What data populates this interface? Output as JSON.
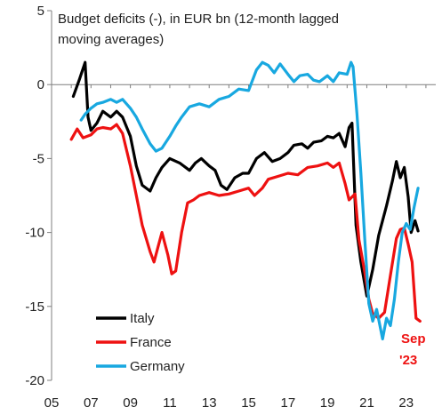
{
  "chart_data": {
    "type": "line",
    "title_lines": [
      "Budget deficits (-), in EUR bn (12-month lagged",
      "moving averages)"
    ],
    "xlabel": "",
    "ylabel": "",
    "xlim": [
      2005,
      2024.5
    ],
    "ylim": [
      -20,
      5
    ],
    "x_ticks": [
      2005,
      2007,
      2009,
      2011,
      2013,
      2015,
      2017,
      2019,
      2021,
      2023
    ],
    "x_tick_labels": [
      "05",
      "07",
      "09",
      "11",
      "13",
      "15",
      "17",
      "19",
      "21",
      "23"
    ],
    "y_ticks": [
      5,
      0,
      -5,
      -10,
      -15,
      -20
    ],
    "y_tick_labels": [
      "5",
      "0",
      "-5",
      "-10",
      "-15",
      "-20"
    ],
    "grid": false,
    "legend_position": "bottom-left",
    "annotation": "Sep '23",
    "annotation_lines": [
      "Sep",
      "'23"
    ],
    "annotation_color": "#ee1111",
    "series": [
      {
        "name": "Italy",
        "color": "#000000",
        "points": [
          [
            2006.1,
            -0.8
          ],
          [
            2006.4,
            0.3
          ],
          [
            2006.7,
            1.5
          ],
          [
            2006.85,
            -2.2
          ],
          [
            2007.0,
            -3.1
          ],
          [
            2007.3,
            -2.6
          ],
          [
            2007.6,
            -1.8
          ],
          [
            2008.0,
            -2.2
          ],
          [
            2008.3,
            -1.8
          ],
          [
            2008.6,
            -2.2
          ],
          [
            2009.0,
            -3.5
          ],
          [
            2009.3,
            -5.5
          ],
          [
            2009.6,
            -6.8
          ],
          [
            2010.0,
            -7.2
          ],
          [
            2010.3,
            -6.3
          ],
          [
            2010.6,
            -5.6
          ],
          [
            2011.0,
            -5.0
          ],
          [
            2011.5,
            -5.3
          ],
          [
            2012.0,
            -5.8
          ],
          [
            2012.3,
            -5.3
          ],
          [
            2012.6,
            -5.0
          ],
          [
            2013.0,
            -5.5
          ],
          [
            2013.3,
            -5.8
          ],
          [
            2013.6,
            -6.8
          ],
          [
            2013.9,
            -7.1
          ],
          [
            2014.3,
            -6.3
          ],
          [
            2014.7,
            -6.0
          ],
          [
            2015.0,
            -6.0
          ],
          [
            2015.4,
            -5.0
          ],
          [
            2015.8,
            -4.6
          ],
          [
            2016.2,
            -5.2
          ],
          [
            2016.6,
            -5.0
          ],
          [
            2017.0,
            -4.6
          ],
          [
            2017.3,
            -4.1
          ],
          [
            2017.7,
            -4.0
          ],
          [
            2018.0,
            -4.3
          ],
          [
            2018.3,
            -3.9
          ],
          [
            2018.7,
            -3.8
          ],
          [
            2019.0,
            -3.5
          ],
          [
            2019.3,
            -3.6
          ],
          [
            2019.6,
            -3.3
          ],
          [
            2019.9,
            -4.2
          ],
          [
            2020.1,
            -2.9
          ],
          [
            2020.25,
            -2.6
          ],
          [
            2020.45,
            -9.5
          ],
          [
            2020.7,
            -12.0
          ],
          [
            2021.0,
            -14.3
          ],
          [
            2021.3,
            -12.5
          ],
          [
            2021.6,
            -10.2
          ],
          [
            2022.0,
            -8.2
          ],
          [
            2022.3,
            -6.5
          ],
          [
            2022.5,
            -5.2
          ],
          [
            2022.7,
            -6.3
          ],
          [
            2022.9,
            -5.6
          ],
          [
            2023.1,
            -7.6
          ],
          [
            2023.25,
            -10.0
          ],
          [
            2023.45,
            -9.2
          ],
          [
            2023.6,
            -9.9
          ]
        ]
      },
      {
        "name": "France",
        "color": "#ee1111",
        "points": [
          [
            2006.0,
            -3.7
          ],
          [
            2006.3,
            -3.0
          ],
          [
            2006.6,
            -3.6
          ],
          [
            2007.0,
            -3.4
          ],
          [
            2007.3,
            -3.0
          ],
          [
            2007.6,
            -2.9
          ],
          [
            2008.0,
            -3.0
          ],
          [
            2008.3,
            -2.7
          ],
          [
            2008.6,
            -3.3
          ],
          [
            2009.0,
            -5.5
          ],
          [
            2009.3,
            -7.5
          ],
          [
            2009.6,
            -9.5
          ],
          [
            2010.0,
            -11.3
          ],
          [
            2010.2,
            -12.0
          ],
          [
            2010.4,
            -11.0
          ],
          [
            2010.6,
            -10.0
          ],
          [
            2010.9,
            -11.5
          ],
          [
            2011.1,
            -12.8
          ],
          [
            2011.3,
            -12.6
          ],
          [
            2011.6,
            -10.0
          ],
          [
            2011.9,
            -8.0
          ],
          [
            2012.2,
            -7.8
          ],
          [
            2012.5,
            -7.5
          ],
          [
            2013.0,
            -7.3
          ],
          [
            2013.5,
            -7.5
          ],
          [
            2014.0,
            -7.4
          ],
          [
            2014.5,
            -7.2
          ],
          [
            2015.0,
            -7.0
          ],
          [
            2015.3,
            -7.5
          ],
          [
            2015.7,
            -7.0
          ],
          [
            2016.0,
            -6.4
          ],
          [
            2016.5,
            -6.2
          ],
          [
            2017.0,
            -6.0
          ],
          [
            2017.5,
            -6.1
          ],
          [
            2018.0,
            -5.6
          ],
          [
            2018.5,
            -5.5
          ],
          [
            2019.0,
            -5.3
          ],
          [
            2019.3,
            -5.6
          ],
          [
            2019.6,
            -5.3
          ],
          [
            2019.9,
            -6.7
          ],
          [
            2020.1,
            -7.8
          ],
          [
            2020.4,
            -7.4
          ],
          [
            2020.6,
            -10.5
          ],
          [
            2020.9,
            -12.7
          ],
          [
            2021.1,
            -14.5
          ],
          [
            2021.3,
            -15.5
          ],
          [
            2021.6,
            -15.8
          ],
          [
            2021.9,
            -15.4
          ],
          [
            2022.2,
            -12.9
          ],
          [
            2022.5,
            -10.4
          ],
          [
            2022.7,
            -9.8
          ],
          [
            2022.9,
            -9.7
          ],
          [
            2023.1,
            -10.8
          ],
          [
            2023.3,
            -12.0
          ],
          [
            2023.5,
            -15.8
          ],
          [
            2023.7,
            -16.0
          ]
        ]
      },
      {
        "name": "Germany",
        "color": "#18a8e0",
        "points": [
          [
            2006.5,
            -2.4
          ],
          [
            2006.7,
            -2.0
          ],
          [
            2007.0,
            -1.6
          ],
          [
            2007.3,
            -1.3
          ],
          [
            2007.6,
            -1.2
          ],
          [
            2008.0,
            -1.0
          ],
          [
            2008.3,
            -1.2
          ],
          [
            2008.6,
            -1.0
          ],
          [
            2009.0,
            -1.6
          ],
          [
            2009.3,
            -2.2
          ],
          [
            2009.6,
            -3.0
          ],
          [
            2010.0,
            -4.0
          ],
          [
            2010.3,
            -4.5
          ],
          [
            2010.6,
            -4.3
          ],
          [
            2011.0,
            -3.5
          ],
          [
            2011.3,
            -2.8
          ],
          [
            2011.6,
            -2.2
          ],
          [
            2012.0,
            -1.5
          ],
          [
            2012.5,
            -1.3
          ],
          [
            2013.0,
            -1.5
          ],
          [
            2013.5,
            -1.0
          ],
          [
            2014.0,
            -0.8
          ],
          [
            2014.5,
            -0.3
          ],
          [
            2015.0,
            -0.4
          ],
          [
            2015.4,
            1.0
          ],
          [
            2015.7,
            1.5
          ],
          [
            2016.0,
            1.3
          ],
          [
            2016.3,
            0.8
          ],
          [
            2016.6,
            1.4
          ],
          [
            2017.0,
            0.7
          ],
          [
            2017.3,
            0.2
          ],
          [
            2017.6,
            0.6
          ],
          [
            2018.0,
            0.7
          ],
          [
            2018.3,
            0.3
          ],
          [
            2018.6,
            0.2
          ],
          [
            2019.0,
            0.6
          ],
          [
            2019.3,
            0.2
          ],
          [
            2019.6,
            0.8
          ],
          [
            2020.0,
            0.7
          ],
          [
            2020.2,
            1.5
          ],
          [
            2020.3,
            1.2
          ],
          [
            2020.5,
            -2.0
          ],
          [
            2020.7,
            -6.0
          ],
          [
            2020.9,
            -10.5
          ],
          [
            2021.1,
            -14.8
          ],
          [
            2021.3,
            -16.0
          ],
          [
            2021.5,
            -15.2
          ],
          [
            2021.8,
            -17.2
          ],
          [
            2022.0,
            -15.8
          ],
          [
            2022.2,
            -16.3
          ],
          [
            2022.4,
            -14.5
          ],
          [
            2022.6,
            -12.0
          ],
          [
            2022.8,
            -10.0
          ],
          [
            2023.0,
            -9.4
          ],
          [
            2023.2,
            -9.8
          ],
          [
            2023.4,
            -8.3
          ],
          [
            2023.6,
            -7.0
          ]
        ]
      }
    ]
  }
}
